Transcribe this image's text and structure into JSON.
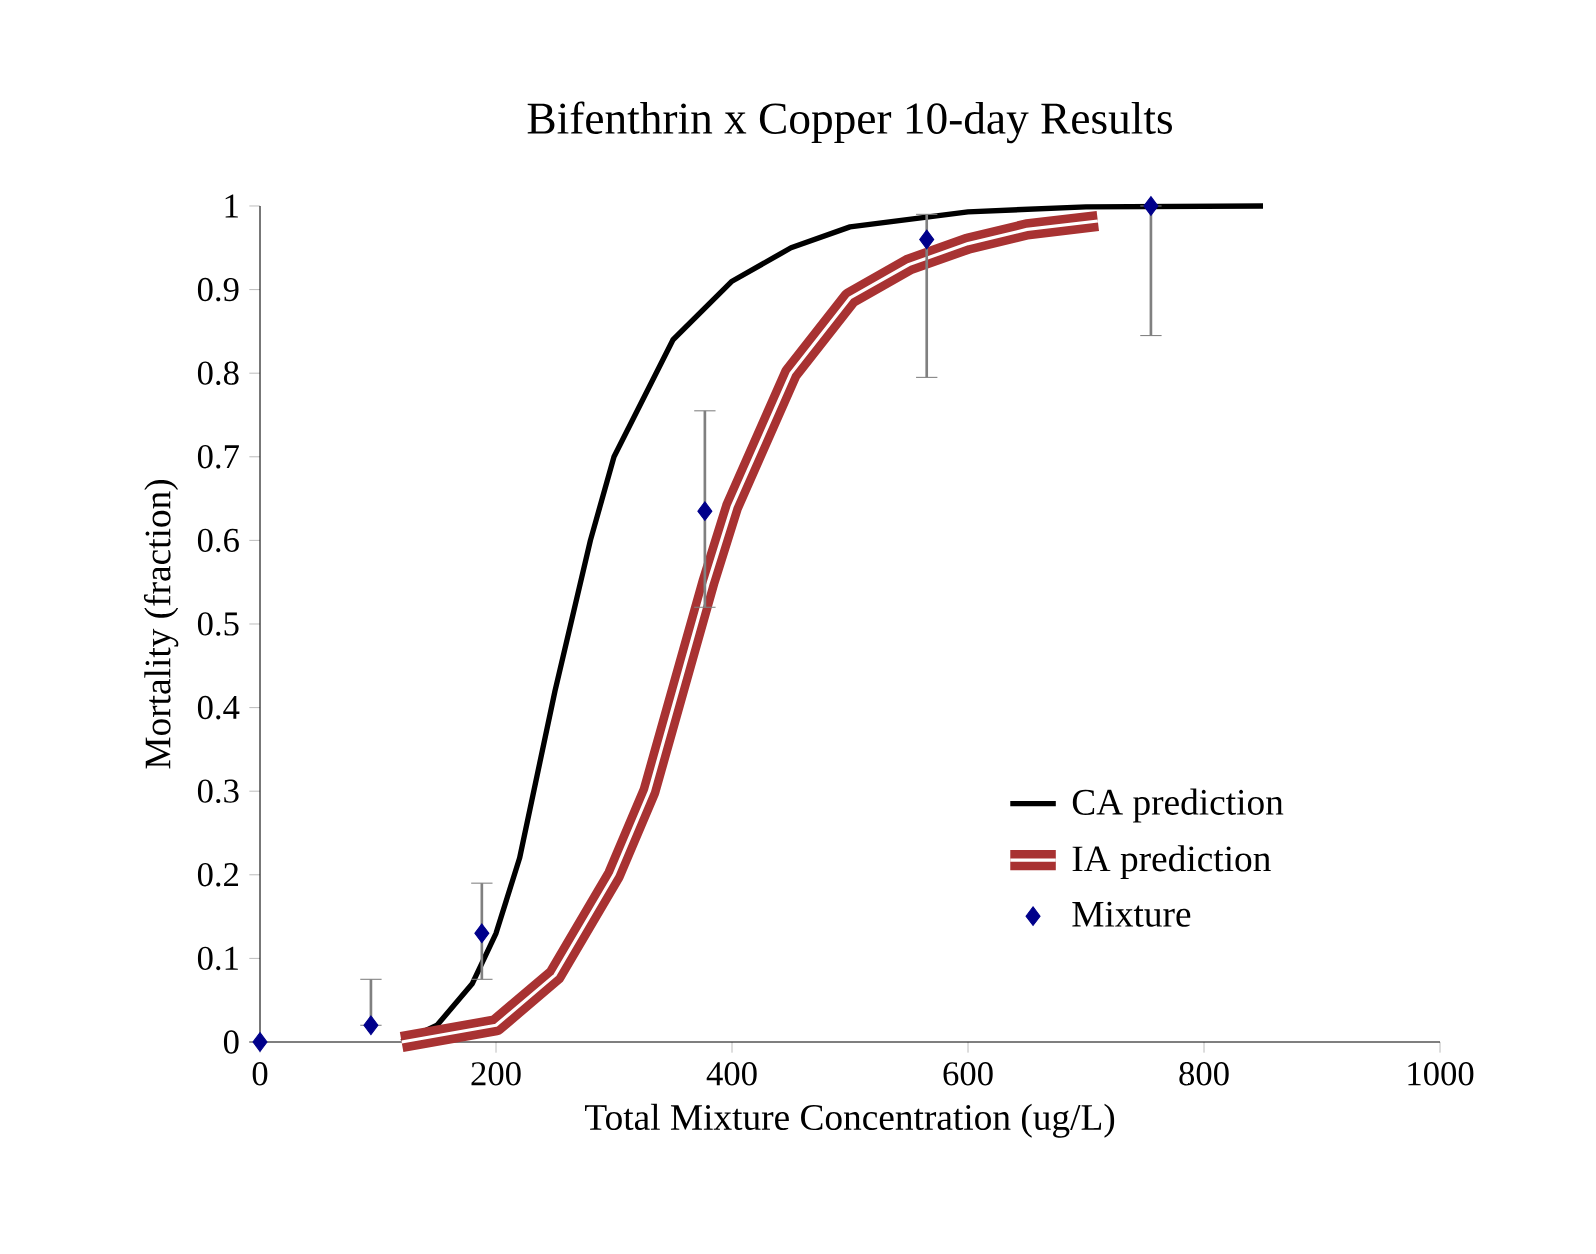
{
  "chart_data": {
    "type": "line",
    "title": "Bifenthrin x Copper 10-day Results",
    "xlabel": "Total Mixture Concentration (ug/L)",
    "ylabel": "Mortality (fraction)",
    "xlim": [
      0,
      1000
    ],
    "xticks": [
      0,
      200,
      400,
      600,
      800,
      1000
    ],
    "ylim": [
      0,
      1
    ],
    "yticks": [
      0,
      0.1,
      0.2,
      0.3,
      0.4,
      0.5,
      0.6,
      0.7,
      0.8,
      0.9,
      1
    ],
    "grid": false,
    "legend": "right",
    "series": [
      {
        "name": "CA prediction",
        "color": "#000000",
        "marker": "none",
        "x": [
          120,
          150,
          180,
          200,
          220,
          250,
          280,
          300,
          350,
          400,
          450,
          500,
          600,
          700,
          850
        ],
        "values": [
          0,
          0.02,
          0.07,
          0.13,
          0.22,
          0.42,
          0.6,
          0.7,
          0.84,
          0.91,
          0.95,
          0.975,
          0.993,
          0.999,
          1.0
        ]
      },
      {
        "name": "IA prediction",
        "color": "#a83232",
        "marker": "none",
        "x": [
          120,
          200,
          250,
          300,
          330,
          360,
          380,
          400,
          450,
          500,
          550,
          600,
          650,
          710
        ],
        "values": [
          0,
          0.02,
          0.08,
          0.2,
          0.3,
          0.45,
          0.55,
          0.64,
          0.8,
          0.89,
          0.93,
          0.955,
          0.972,
          0.982
        ]
      },
      {
        "name": "Mixture",
        "type": "scatter",
        "color": "#00008b",
        "marker": "diamond",
        "x": [
          0,
          94,
          188,
          377,
          565,
          755
        ],
        "values": [
          0,
          0.02,
          0.13,
          0.635,
          0.96,
          1.0
        ],
        "errors": [
          null,
          [
            0.02,
            0.075
          ],
          [
            0.075,
            0.19
          ],
          [
            0.52,
            0.755
          ],
          [
            0.795,
            0.99
          ],
          [
            0.845,
            1.0
          ]
        ]
      }
    ]
  }
}
